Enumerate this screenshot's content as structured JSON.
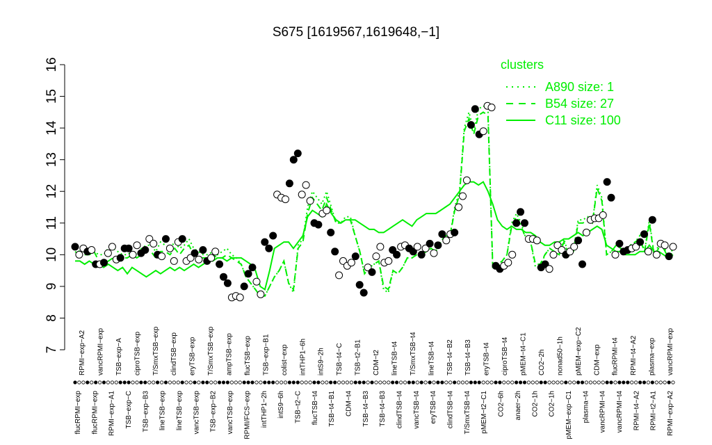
{
  "chart_data": {
    "type": "line",
    "title": "S675 [1619567,1619648,−1]",
    "xlabel": "",
    "ylabel": "",
    "ylim": [
      7,
      16
    ],
    "y_ticks": [
      7,
      8,
      9,
      10,
      11,
      12,
      13,
      14,
      15,
      16
    ],
    "x_tick_labels_top": [
      "RPMI−exp−A2",
      "vancRPMI−exp",
      "TSB−exp−A",
      "ciproTSB−exp",
      "T/SmxTSB−exp",
      "clindTSB−exp",
      "eryTSB−exp",
      "T/SmxTSB−exp",
      "ampTSB−exp",
      "flucTSB−exp",
      "TSB−exp−B1",
      "colist−exp",
      "intTHP1−6h",
      "intS9−2h",
      "TSB−t4−C",
      "TSB−t2−B1",
      "CDM−t2",
      "lineTSB−t4",
      "T/SmxTSB−t4",
      "lineTSB−t4",
      "TSB−t4−B2",
      "TSB−t4−B3",
      "eryTSB−t4",
      "ciproTSB−t4",
      "pMEM−t4−C1",
      "CO2−2h",
      "nonad50−1h",
      "pMEM−exp−C2",
      "CDM−exp",
      "flucRPMI−t4",
      "RPMI−t4−A2",
      "plasma−exp",
      "vancRPMI−exp"
    ],
    "x_tick_labels_bottom": [
      "flucRPMI−exp",
      "flucRPMI−exp",
      "RPMI−exp−A1",
      "TSB−exp−C",
      "TSB−exp−B3",
      "lineTSB−exp",
      "lineTSB−exp",
      "vancTSB−exp",
      "TSB−exp−B2",
      "vancTSB−exp",
      "RPMI/FCS−exp",
      "intTHP1−2h",
      "intS9−6h",
      "TSB−t2−C",
      "flucTSB−t4",
      "TSB−t4−B1",
      "CDM−t4",
      "TSB−t4−B3",
      "TSB−t4−B3",
      "clindTSB−t4",
      "vancTSB−t4",
      "eryTSB−t4",
      "clindTSB−t4",
      "T/SmxTSB−t4",
      "pMEM−t2−C1",
      "CO2−6h",
      "anaer−2h",
      "CO2−1h",
      "CO2−1h",
      "pMEM−exp−C1",
      "plasma−t4",
      "vancRPMI−t4",
      "vancRPMI−t4",
      "RPMI−t4−A2",
      "RPMI−t2−A1",
      "RPMI−exp−A2"
    ],
    "series": [
      {
        "name": "A890 size: 1",
        "style": "dotted",
        "values": [
          10.2,
          10.1,
          10.1,
          10.0,
          10.1,
          10.0,
          10.0,
          10.2,
          10.2,
          10.1,
          10.0,
          10.0,
          10.1,
          10.0,
          10.2,
          10.3,
          10.3,
          10.1,
          10.4,
          10.3,
          10.2,
          10.4,
          10.2,
          10.3,
          10.5,
          10.2,
          10.1,
          10.0,
          10.0,
          10.1,
          10.0,
          10.1,
          10.2,
          10.0,
          9.9,
          9.7,
          9.3,
          9.1,
          8.9,
          8.7,
          8.7,
          9.0,
          9.3,
          9.5,
          9.8,
          9.1,
          8.8,
          10.3,
          10.5,
          11.5,
          12.0,
          11.8,
          11.6,
          12.0,
          11.5,
          11.0,
          11.0,
          11.2,
          11.2,
          10.6,
          10.1,
          9.4,
          9.6,
          9.7,
          9.8,
          8.9,
          8.8,
          9.5,
          9.4,
          9.6,
          9.9,
          9.9,
          10.0,
          10.0,
          10.1,
          10.2,
          10.1,
          10.4,
          10.6,
          10.6,
          11.5,
          12.0,
          14.0,
          14.5,
          13.9,
          14.6,
          14.7,
          14.6,
          9.6,
          9.6,
          9.8,
          10.0,
          11.0,
          11.3,
          11.0,
          10.5,
          10.4,
          9.6,
          9.6,
          10.0,
          10.2,
          10.1,
          10.0,
          10.5,
          10.0,
          10.1,
          11.1,
          11.1,
          11.2,
          11.0,
          12.2,
          11.8,
          10.0,
          10.1,
          10.3,
          10.2,
          10.1,
          10.3,
          10.4,
          10.6,
          10.1,
          11.1,
          10.0,
          10.3,
          10.3,
          9.9,
          10.2
        ]
      },
      {
        "name": "B54 size: 27",
        "style": "dashed",
        "values": [
          10.1,
          10.0,
          10.0,
          10.0,
          10.1,
          9.8,
          9.7,
          9.8,
          9.9,
          9.8,
          9.9,
          9.9,
          10.0,
          9.9,
          10.0,
          10.1,
          10.1,
          9.9,
          10.1,
          10.1,
          10.0,
          10.2,
          10.0,
          10.2,
          10.3,
          10.0,
          9.9,
          9.9,
          9.9,
          10.0,
          9.9,
          9.9,
          10.0,
          9.9,
          9.8,
          9.7,
          9.3,
          9.1,
          8.9,
          8.7,
          8.7,
          9.0,
          9.3,
          9.5,
          9.8,
          9.1,
          8.9,
          10.2,
          10.4,
          11.3,
          11.8,
          11.6,
          11.4,
          11.8,
          11.4,
          11.0,
          11.0,
          11.1,
          11.1,
          10.6,
          10.1,
          9.4,
          9.6,
          9.7,
          9.8,
          9.0,
          8.9,
          9.5,
          9.4,
          9.6,
          9.9,
          9.9,
          10.0,
          10.0,
          10.1,
          10.2,
          10.1,
          10.4,
          10.6,
          10.6,
          11.4,
          11.9,
          13.9,
          14.3,
          13.8,
          14.4,
          14.5,
          14.4,
          9.7,
          9.7,
          9.8,
          10.0,
          10.9,
          11.2,
          10.9,
          10.5,
          10.4,
          9.7,
          9.7,
          10.0,
          10.2,
          10.1,
          10.0,
          10.4,
          10.0,
          10.1,
          11.0,
          11.0,
          11.1,
          11.0,
          12.1,
          11.7,
          10.0,
          10.1,
          10.3,
          10.2,
          10.1,
          10.3,
          10.4,
          10.5,
          10.1,
          11.0,
          10.0,
          10.2,
          10.2,
          9.9,
          10.1
        ]
      },
      {
        "name": "C11 size: 100",
        "style": "solid",
        "values": [
          9.8,
          9.8,
          9.7,
          9.8,
          9.7,
          9.7,
          9.6,
          9.7,
          9.6,
          9.5,
          9.6,
          9.4,
          9.6,
          9.5,
          9.4,
          9.3,
          9.4,
          9.5,
          9.4,
          9.5,
          9.6,
          9.5,
          9.6,
          9.5,
          9.6,
          9.7,
          9.6,
          9.7,
          9.8,
          9.8,
          9.9,
          9.9,
          9.8,
          9.9,
          9.9,
          9.9,
          9.8,
          9.7,
          9.5,
          9.0,
          8.9,
          9.5,
          10.2,
          10.3,
          10.4,
          10.4,
          10.2,
          10.4,
          10.6,
          11.2,
          11.4,
          11.3,
          11.2,
          11.6,
          11.3,
          11.1,
          11.0,
          11.1,
          11.1,
          11.1,
          11.0,
          10.9,
          10.8,
          10.8,
          10.7,
          10.7,
          10.8,
          10.9,
          11.0,
          11.1,
          11.0,
          10.9,
          11.1,
          11.2,
          11.3,
          11.3,
          11.3,
          11.4,
          11.5,
          11.6,
          11.8,
          12.0,
          12.2,
          12.3,
          12.3,
          12.2,
          12.3,
          12.0,
          11.6,
          11.1,
          10.9,
          10.8,
          10.9,
          10.8,
          10.8,
          10.7,
          10.7,
          10.6,
          10.4,
          10.3,
          10.3,
          10.4,
          10.4,
          10.5,
          10.5,
          10.6,
          10.7,
          10.6,
          10.7,
          10.8,
          10.9,
          10.8,
          10.3,
          10.2,
          10.1,
          10.1,
          10.0,
          10.0,
          10.0,
          10.1,
          10.1,
          10.3,
          10.1,
          10.1,
          10.0,
          9.9,
          10.0
        ]
      }
    ],
    "points": [
      {
        "v": 10.25,
        "f": true
      },
      {
        "v": 10.0,
        "f": false
      },
      {
        "v": 10.2,
        "f": false
      },
      {
        "v": 10.1,
        "f": true
      },
      {
        "v": 10.15,
        "f": false
      },
      {
        "v": 9.7,
        "f": true
      },
      {
        "v": 9.7,
        "f": false
      },
      {
        "v": 9.75,
        "f": true
      },
      {
        "v": 10.05,
        "f": false
      },
      {
        "v": 10.25,
        "f": false
      },
      {
        "v": 9.85,
        "f": false
      },
      {
        "v": 9.9,
        "f": true
      },
      {
        "v": 10.2,
        "f": true
      },
      {
        "v": 10.2,
        "f": true
      },
      {
        "v": 10.0,
        "f": false
      },
      {
        "v": 10.3,
        "f": false
      },
      {
        "v": 10.05,
        "f": true
      },
      {
        "v": 10.15,
        "f": true
      },
      {
        "v": 10.5,
        "f": false
      },
      {
        "v": 10.35,
        "f": false
      },
      {
        "v": 10.0,
        "f": true
      },
      {
        "v": 9.95,
        "f": false
      },
      {
        "v": 10.5,
        "f": true
      },
      {
        "v": 10.2,
        "f": false
      },
      {
        "v": 9.8,
        "f": false
      },
      {
        "v": 10.4,
        "f": false
      },
      {
        "v": 10.5,
        "f": true
      },
      {
        "v": 9.8,
        "f": false
      },
      {
        "v": 9.9,
        "f": false
      },
      {
        "v": 10.05,
        "f": true
      },
      {
        "v": 9.85,
        "f": false
      },
      {
        "v": 10.15,
        "f": true
      },
      {
        "v": 9.8,
        "f": true
      },
      {
        "v": 9.9,
        "f": false
      },
      {
        "v": 10.1,
        "f": false
      },
      {
        "v": 9.7,
        "f": true
      },
      {
        "v": 9.3,
        "f": true
      },
      {
        "v": 9.1,
        "f": true
      },
      {
        "v": 8.65,
        "f": false
      },
      {
        "v": 8.7,
        "f": false
      },
      {
        "v": 8.65,
        "f": false
      },
      {
        "v": 9.0,
        "f": true
      },
      {
        "v": 9.4,
        "f": true
      },
      {
        "v": 9.6,
        "f": true
      },
      {
        "v": 9.15,
        "f": false
      },
      {
        "v": 8.75,
        "f": false
      },
      {
        "v": 10.4,
        "f": true
      },
      {
        "v": 10.2,
        "f": true
      },
      {
        "v": 10.6,
        "f": true
      },
      {
        "v": 11.9,
        "f": false
      },
      {
        "v": 11.8,
        "f": false
      },
      {
        "v": 11.75,
        "f": false
      },
      {
        "v": 12.25,
        "f": true
      },
      {
        "v": 13.0,
        "f": true
      },
      {
        "v": 13.2,
        "f": true
      },
      {
        "v": 11.9,
        "f": false
      },
      {
        "v": 12.2,
        "f": false
      },
      {
        "v": 11.7,
        "f": false
      },
      {
        "v": 11.0,
        "f": true
      },
      {
        "v": 10.95,
        "f": true
      },
      {
        "v": 11.3,
        "f": false
      },
      {
        "v": 11.4,
        "f": false
      },
      {
        "v": 10.7,
        "f": true
      },
      {
        "v": 10.1,
        "f": true
      },
      {
        "v": 9.35,
        "f": false
      },
      {
        "v": 9.8,
        "f": false
      },
      {
        "v": 9.65,
        "f": false
      },
      {
        "v": 9.75,
        "f": false
      },
      {
        "v": 9.95,
        "f": true
      },
      {
        "v": 9.05,
        "f": true
      },
      {
        "v": 8.8,
        "f": true
      },
      {
        "v": 9.6,
        "f": false
      },
      {
        "v": 9.45,
        "f": true
      },
      {
        "v": 9.95,
        "f": false
      },
      {
        "v": 10.25,
        "f": false
      },
      {
        "v": 9.75,
        "f": false
      },
      {
        "v": 9.8,
        "f": false
      },
      {
        "v": 10.15,
        "f": true
      },
      {
        "v": 10.0,
        "f": true
      },
      {
        "v": 10.25,
        "f": false
      },
      {
        "v": 10.3,
        "f": false
      },
      {
        "v": 10.2,
        "f": true
      },
      {
        "v": 10.1,
        "f": true
      },
      {
        "v": 10.25,
        "f": false
      },
      {
        "v": 10.0,
        "f": true
      },
      {
        "v": 10.2,
        "f": false
      },
      {
        "v": 10.35,
        "f": true
      },
      {
        "v": 10.05,
        "f": false
      },
      {
        "v": 10.3,
        "f": true
      },
      {
        "v": 10.65,
        "f": true
      },
      {
        "v": 10.45,
        "f": false
      },
      {
        "v": 10.65,
        "f": false
      },
      {
        "v": 10.7,
        "f": true
      },
      {
        "v": 11.5,
        "f": false
      },
      {
        "v": 11.85,
        "f": false
      },
      {
        "v": 12.35,
        "f": false
      },
      {
        "v": 14.1,
        "f": true
      },
      {
        "v": 14.6,
        "f": true
      },
      {
        "v": 13.8,
        "f": true
      },
      {
        "v": 13.9,
        "f": false
      },
      {
        "v": 14.7,
        "f": false
      },
      {
        "v": 14.65,
        "f": false
      },
      {
        "v": 9.65,
        "f": true
      },
      {
        "v": 9.55,
        "f": true
      },
      {
        "v": 9.65,
        "f": false
      },
      {
        "v": 9.75,
        "f": false
      },
      {
        "v": 10.0,
        "f": false
      },
      {
        "v": 11.0,
        "f": true
      },
      {
        "v": 11.35,
        "f": true
      },
      {
        "v": 11.0,
        "f": true
      },
      {
        "v": 10.5,
        "f": false
      },
      {
        "v": 10.5,
        "f": false
      },
      {
        "v": 10.45,
        "f": false
      },
      {
        "v": 9.6,
        "f": true
      },
      {
        "v": 9.7,
        "f": true
      },
      {
        "v": 9.55,
        "f": false
      },
      {
        "v": 10.0,
        "f": false
      },
      {
        "v": 10.3,
        "f": false
      },
      {
        "v": 10.15,
        "f": false
      },
      {
        "v": 10.0,
        "f": true
      },
      {
        "v": 10.1,
        "f": false
      },
      {
        "v": 10.25,
        "f": false
      },
      {
        "v": 10.45,
        "f": true
      },
      {
        "v": 9.7,
        "f": true
      },
      {
        "v": 10.7,
        "f": false
      },
      {
        "v": 11.1,
        "f": false
      },
      {
        "v": 11.15,
        "f": false
      },
      {
        "v": 11.15,
        "f": false
      },
      {
        "v": 11.25,
        "f": false
      },
      {
        "v": 12.3,
        "f": true
      },
      {
        "v": 11.8,
        "f": true
      },
      {
        "v": 10.0,
        "f": false
      },
      {
        "v": 10.35,
        "f": true
      },
      {
        "v": 10.1,
        "f": true
      },
      {
        "v": 10.15,
        "f": true
      },
      {
        "v": 10.2,
        "f": false
      },
      {
        "v": 10.25,
        "f": false
      },
      {
        "v": 10.4,
        "f": true
      },
      {
        "v": 10.65,
        "f": true
      },
      {
        "v": 10.1,
        "f": false
      },
      {
        "v": 11.1,
        "f": true
      },
      {
        "v": 10.0,
        "f": false
      },
      {
        "v": 10.35,
        "f": false
      },
      {
        "v": 10.3,
        "f": false
      },
      {
        "v": 9.95,
        "f": true
      },
      {
        "v": 10.25,
        "f": false
      }
    ],
    "legend": {
      "title": "clusters",
      "placement": "top-right",
      "entries": [
        {
          "label": "A890 size: 1",
          "style": "dotted"
        },
        {
          "label": "B54 size: 27",
          "style": "dashed"
        },
        {
          "label": "C11 size: 100",
          "style": "solid"
        }
      ]
    },
    "colors": {
      "cluster": "#00ee00",
      "axis": "#000000",
      "point_stroke": "#000000"
    },
    "grid": false
  }
}
